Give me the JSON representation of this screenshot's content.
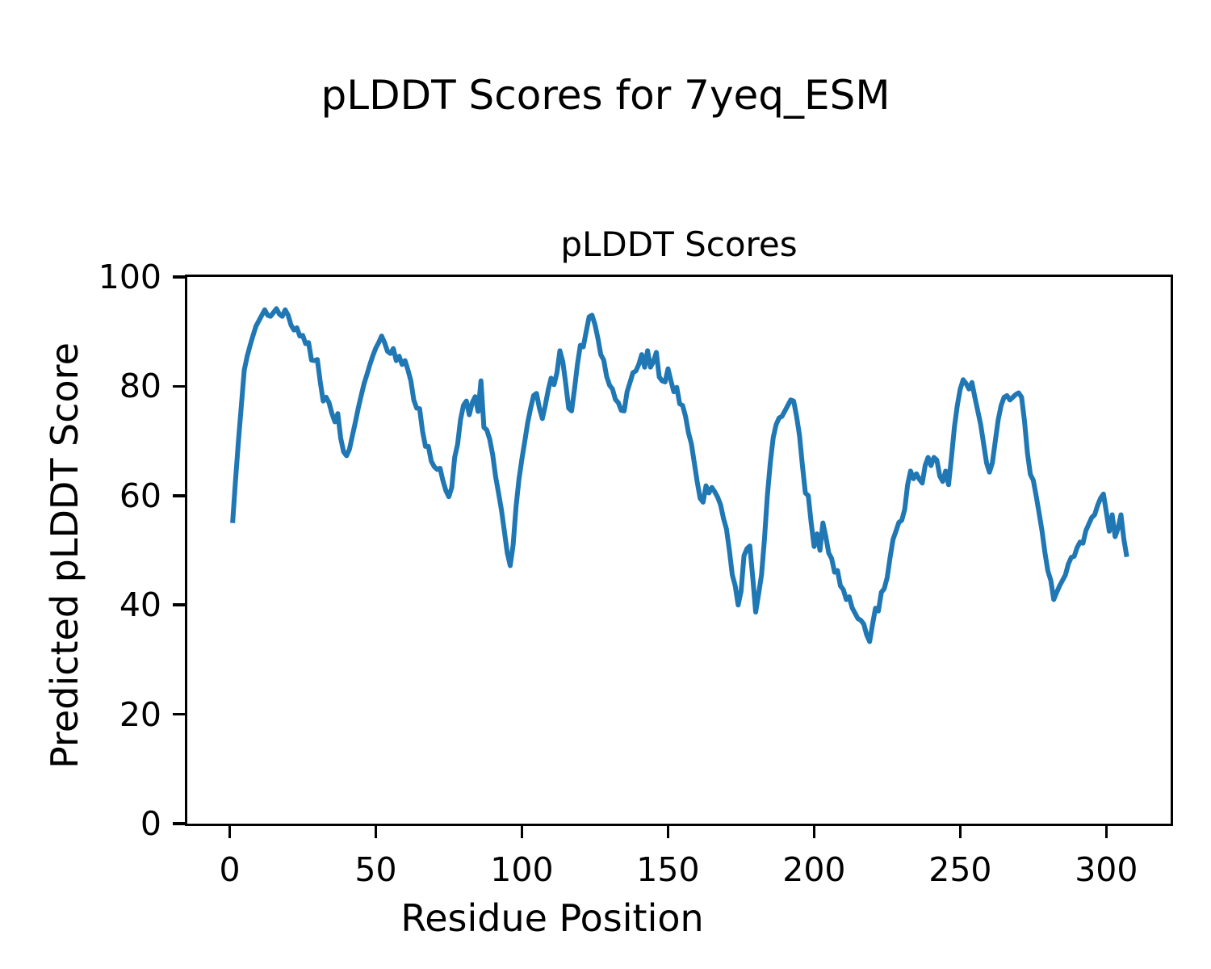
{
  "figure": {
    "suptitle": "pLDDT Scores for 7yeq_ESM",
    "background_color": "#ffffff",
    "text_color": "#000000"
  },
  "chart_data": {
    "type": "line",
    "title": "pLDDT Scores",
    "xlabel": "Residue Position",
    "ylabel": "Predicted pLDDT Score",
    "xlim": [
      -14.5,
      322
    ],
    "ylim": [
      0,
      100
    ],
    "x_ticks": [
      0,
      50,
      100,
      150,
      200,
      250,
      300
    ],
    "y_ticks": [
      0,
      20,
      40,
      60,
      80,
      100
    ],
    "grid": false,
    "legend_position": "none",
    "line_color": "#1f77b4",
    "line_width": 6,
    "series": [
      {
        "name": "pLDDT",
        "x_start": 1,
        "x_step": 1,
        "y": [
          55.0,
          62.8,
          70.0,
          76.5,
          83.0,
          85.5,
          87.5,
          89.3,
          91.0,
          92.0,
          93.0,
          94.0,
          93.0,
          92.8,
          93.5,
          94.2,
          93.2,
          92.8,
          94.0,
          93.0,
          91.2,
          90.3,
          90.7,
          89.2,
          89.3,
          87.8,
          88.0,
          84.8,
          84.7,
          84.9,
          80.8,
          77.3,
          78.0,
          77.0,
          75.0,
          73.5,
          75.0,
          70.5,
          68.0,
          67.3,
          68.5,
          71.0,
          73.4,
          76.0,
          78.3,
          80.5,
          82.2,
          84.0,
          85.6,
          87.0,
          88.0,
          89.2,
          88.0,
          86.4,
          86.0,
          86.9,
          84.7,
          85.5,
          84.0,
          84.7,
          83.0,
          81.0,
          77.5,
          76.0,
          75.9,
          71.8,
          69.0,
          69.0,
          66.3,
          65.3,
          64.8,
          65.0,
          62.7,
          60.9,
          59.8,
          61.5,
          67.0,
          69.4,
          73.9,
          76.5,
          77.3,
          74.8,
          77.0,
          78.1,
          75.4,
          81.0,
          72.5,
          72.0,
          70.3,
          67.5,
          63.5,
          60.5,
          57.4,
          53.5,
          49.5,
          47.2,
          51.0,
          58.0,
          63.0,
          66.7,
          70.0,
          73.4,
          76.0,
          78.3,
          78.7,
          76.0,
          74.1,
          76.5,
          79.3,
          81.5,
          80.3,
          82.5,
          86.5,
          84.5,
          80.5,
          76.0,
          75.5,
          79.5,
          84.0,
          87.5,
          87.2,
          90.0,
          92.7,
          93.0,
          91.3,
          88.8,
          85.8,
          84.8,
          81.8,
          80.2,
          79.5,
          77.6,
          77.0,
          75.6,
          75.5,
          79.0,
          80.7,
          82.5,
          82.8,
          84.0,
          85.8,
          83.5,
          86.5,
          83.5,
          84.5,
          86.2,
          81.7,
          81.0,
          80.8,
          83.2,
          81.0,
          79.0,
          79.8,
          76.8,
          76.5,
          74.5,
          71.5,
          69.5,
          66.0,
          62.5,
          59.5,
          58.8,
          61.8,
          60.5,
          61.5,
          60.7,
          59.7,
          58.3,
          55.8,
          53.9,
          50.0,
          45.5,
          43.5,
          40.0,
          42.5,
          49.0,
          50.3,
          50.8,
          45.0,
          38.7,
          42.0,
          45.5,
          52.0,
          60.0,
          66.0,
          70.6,
          73.0,
          74.2,
          74.5,
          75.5,
          76.5,
          77.5,
          77.3,
          74.5,
          71.0,
          65.5,
          60.5,
          60.0,
          55.0,
          50.7,
          53.0,
          50.0,
          55.0,
          52.5,
          49.5,
          48.5,
          46.0,
          46.3,
          43.5,
          42.8,
          41.0,
          41.5,
          39.5,
          38.5,
          37.5,
          37.2,
          36.5,
          34.5,
          33.3,
          36.5,
          39.4,
          38.9,
          42.3,
          43.0,
          45.0,
          48.7,
          52.0,
          53.5,
          55.1,
          55.5,
          57.5,
          62.0,
          64.5,
          63.1,
          64.0,
          63.0,
          62.3,
          65.5,
          67.0,
          65.5,
          67.0,
          66.5,
          63.6,
          62.6,
          64.5,
          62.0,
          67.0,
          72.5,
          76.5,
          79.5,
          81.2,
          80.5,
          79.5,
          80.7,
          78.0,
          75.5,
          73.0,
          69.5,
          66.0,
          64.3,
          66.0,
          70.0,
          73.9,
          76.5,
          78.0,
          78.3,
          77.5,
          78.0,
          78.5,
          78.8,
          78.0,
          73.6,
          67.8,
          63.9,
          62.8,
          59.9,
          56.8,
          53.5,
          49.5,
          46.2,
          44.5,
          41.0,
          42.3,
          43.5,
          44.5,
          45.5,
          47.5,
          48.7,
          48.9,
          50.5,
          51.5,
          51.3,
          53.6,
          54.8,
          56.0,
          56.5,
          58.2,
          59.5,
          60.3,
          57.0,
          53.5,
          56.5,
          52.5,
          54.0,
          56.5,
          52.0,
          48.8
        ]
      }
    ]
  }
}
